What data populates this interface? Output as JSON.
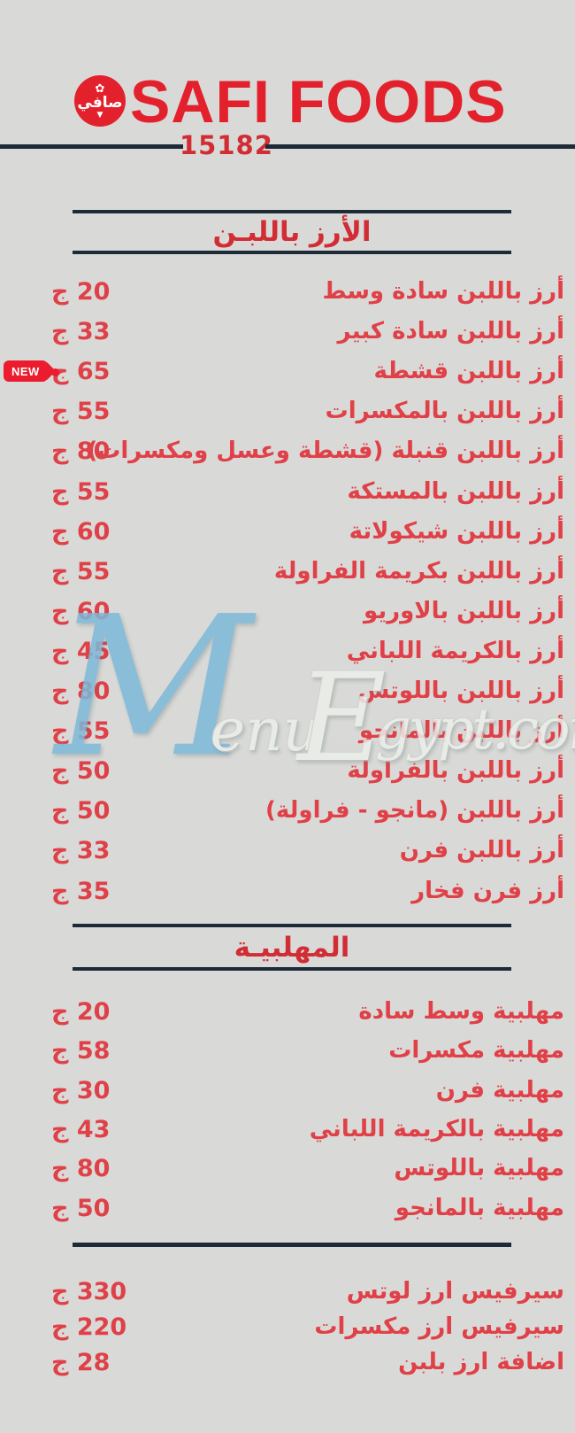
{
  "brand": {
    "name": "SAFI FOODS",
    "logo_text": "صافي",
    "hotline": "15182"
  },
  "currency": "ج",
  "badge": {
    "label": "NEW"
  },
  "watermark": {
    "m": "M",
    "enu": "enu",
    "e": "E",
    "rest": "gypt.com"
  },
  "colors": {
    "background": "#d9dad7",
    "brand_red": "#e3212c",
    "title_red": "#d22c35",
    "item_red": "#e04048",
    "line_dark": "#1d2a38",
    "badge_red": "#ea1c2d",
    "watermark_blue": "#7db7d9"
  },
  "sections": [
    {
      "title": "الأرز باللبـن",
      "items": [
        {
          "name": "أرز باللبن سادة وسط",
          "price": "20"
        },
        {
          "name": "أرز باللبن سادة كبير",
          "price": "33"
        },
        {
          "name": "أرز باللبن قشطة",
          "price": "65",
          "new": true
        },
        {
          "name": "أرز باللبن بالمكسرات",
          "price": "55"
        },
        {
          "name": "أرز باللبن قنبلة (قشطة وعسل ومكسرات)",
          "price": "80"
        },
        {
          "name": "أرز باللبن بالمستكة",
          "price": "55"
        },
        {
          "name": "أرز باللبن شيكولاتة",
          "price": "60"
        },
        {
          "name": "أرز باللبن بكريمة الفراولة",
          "price": "55"
        },
        {
          "name": "أرز باللبن بالاوريو",
          "price": "60"
        },
        {
          "name": "أرز بالكريمة اللباني",
          "price": "45"
        },
        {
          "name": "أرز باللبن باللوتس",
          "price": "80"
        },
        {
          "name": "أرز باللبن بالمانجو",
          "price": "55"
        },
        {
          "name": "أرز باللبن بالفراولة",
          "price": "50"
        },
        {
          "name": "أرز باللبن (مانجو - فراولة)",
          "price": "50"
        },
        {
          "name": "أرز باللبن فرن",
          "price": "33"
        },
        {
          "name": "أرز فرن فخار",
          "price": "35"
        }
      ]
    },
    {
      "title": "المهلبيـة",
      "items": [
        {
          "name": "مهلبية وسط سادة",
          "price": "20"
        },
        {
          "name": "مهلبية مكسرات",
          "price": "58"
        },
        {
          "name": "مهلبية فرن",
          "price": "30"
        },
        {
          "name": "مهلبية بالكريمة اللباني",
          "price": "43"
        },
        {
          "name": "مهلبية باللوتس",
          "price": "80"
        },
        {
          "name": "مهلبية بالمانجو",
          "price": "50"
        }
      ]
    },
    {
      "title": "",
      "items": [
        {
          "name": "سيرفيس ارز لوتس",
          "price": "330"
        },
        {
          "name": "سيرفيس ارز مكسرات",
          "price": "220"
        },
        {
          "name": "اضافة  ارز بلبن",
          "price": "28"
        }
      ]
    }
  ]
}
